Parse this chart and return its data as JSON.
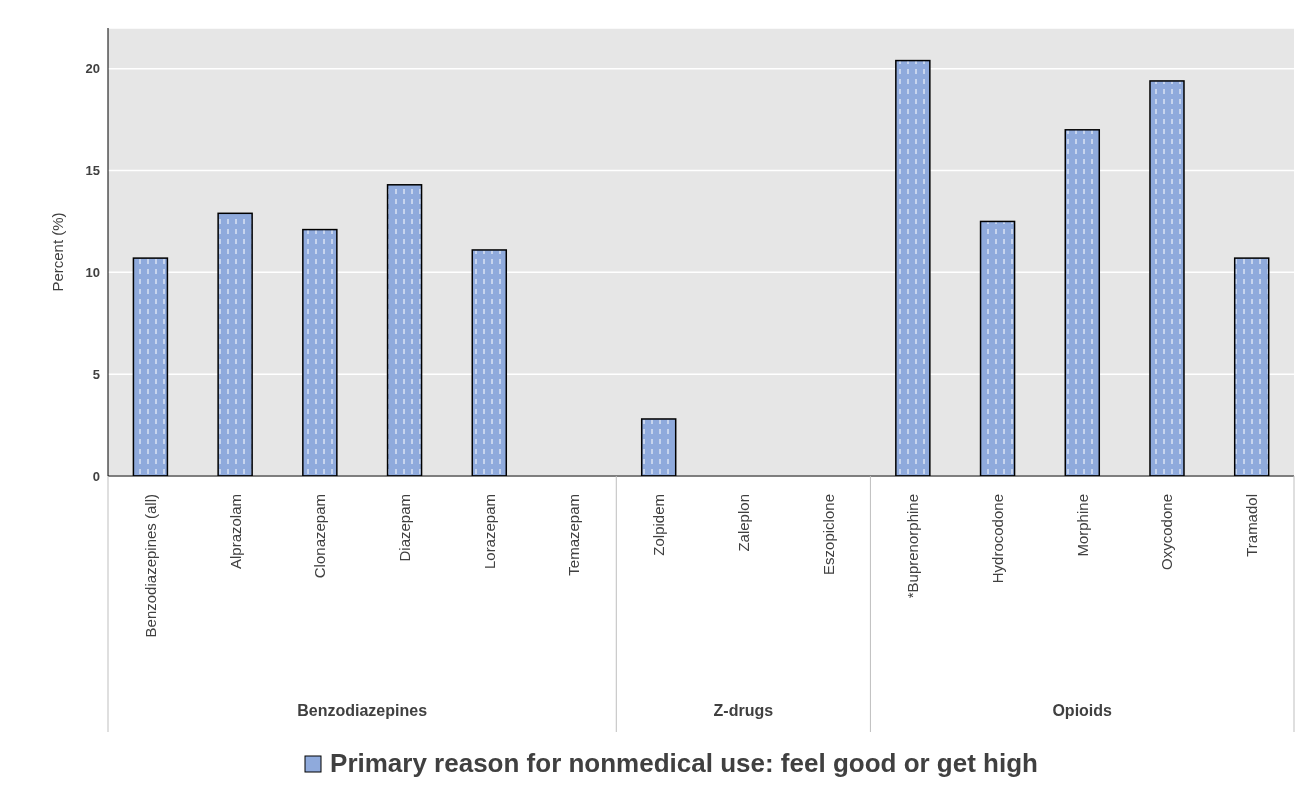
{
  "chart_data": {
    "type": "bar",
    "ylabel": "Percent (%)",
    "categories": [
      "Benzodiazepines (all)",
      "Alprazolam",
      "Clonazepam",
      "Diazepam",
      "Lorazepam",
      "Temazepam",
      "Zolpidem",
      "Zaleplon",
      "Eszopiclone",
      "*Buprenorphine",
      "Hydrocodone",
      "Morphine",
      "Oxycodone",
      "Tramadol"
    ],
    "series": [
      {
        "name": "Primary reason for nonmedical use: feel good or get high",
        "color": "#8faadc",
        "values": [
          10.7,
          12.9,
          12.1,
          14.3,
          11.1,
          null,
          2.8,
          null,
          null,
          20.4,
          12.5,
          17.0,
          19.4,
          10.7
        ]
      }
    ],
    "ylim": [
      0,
      22
    ],
    "yticks": [
      0,
      5,
      10,
      15,
      20
    ],
    "grid": "y",
    "legend": "bottom",
    "annotations": [
      "Benzodiazepines",
      "Z-drugs",
      "Opioids"
    ]
  }
}
